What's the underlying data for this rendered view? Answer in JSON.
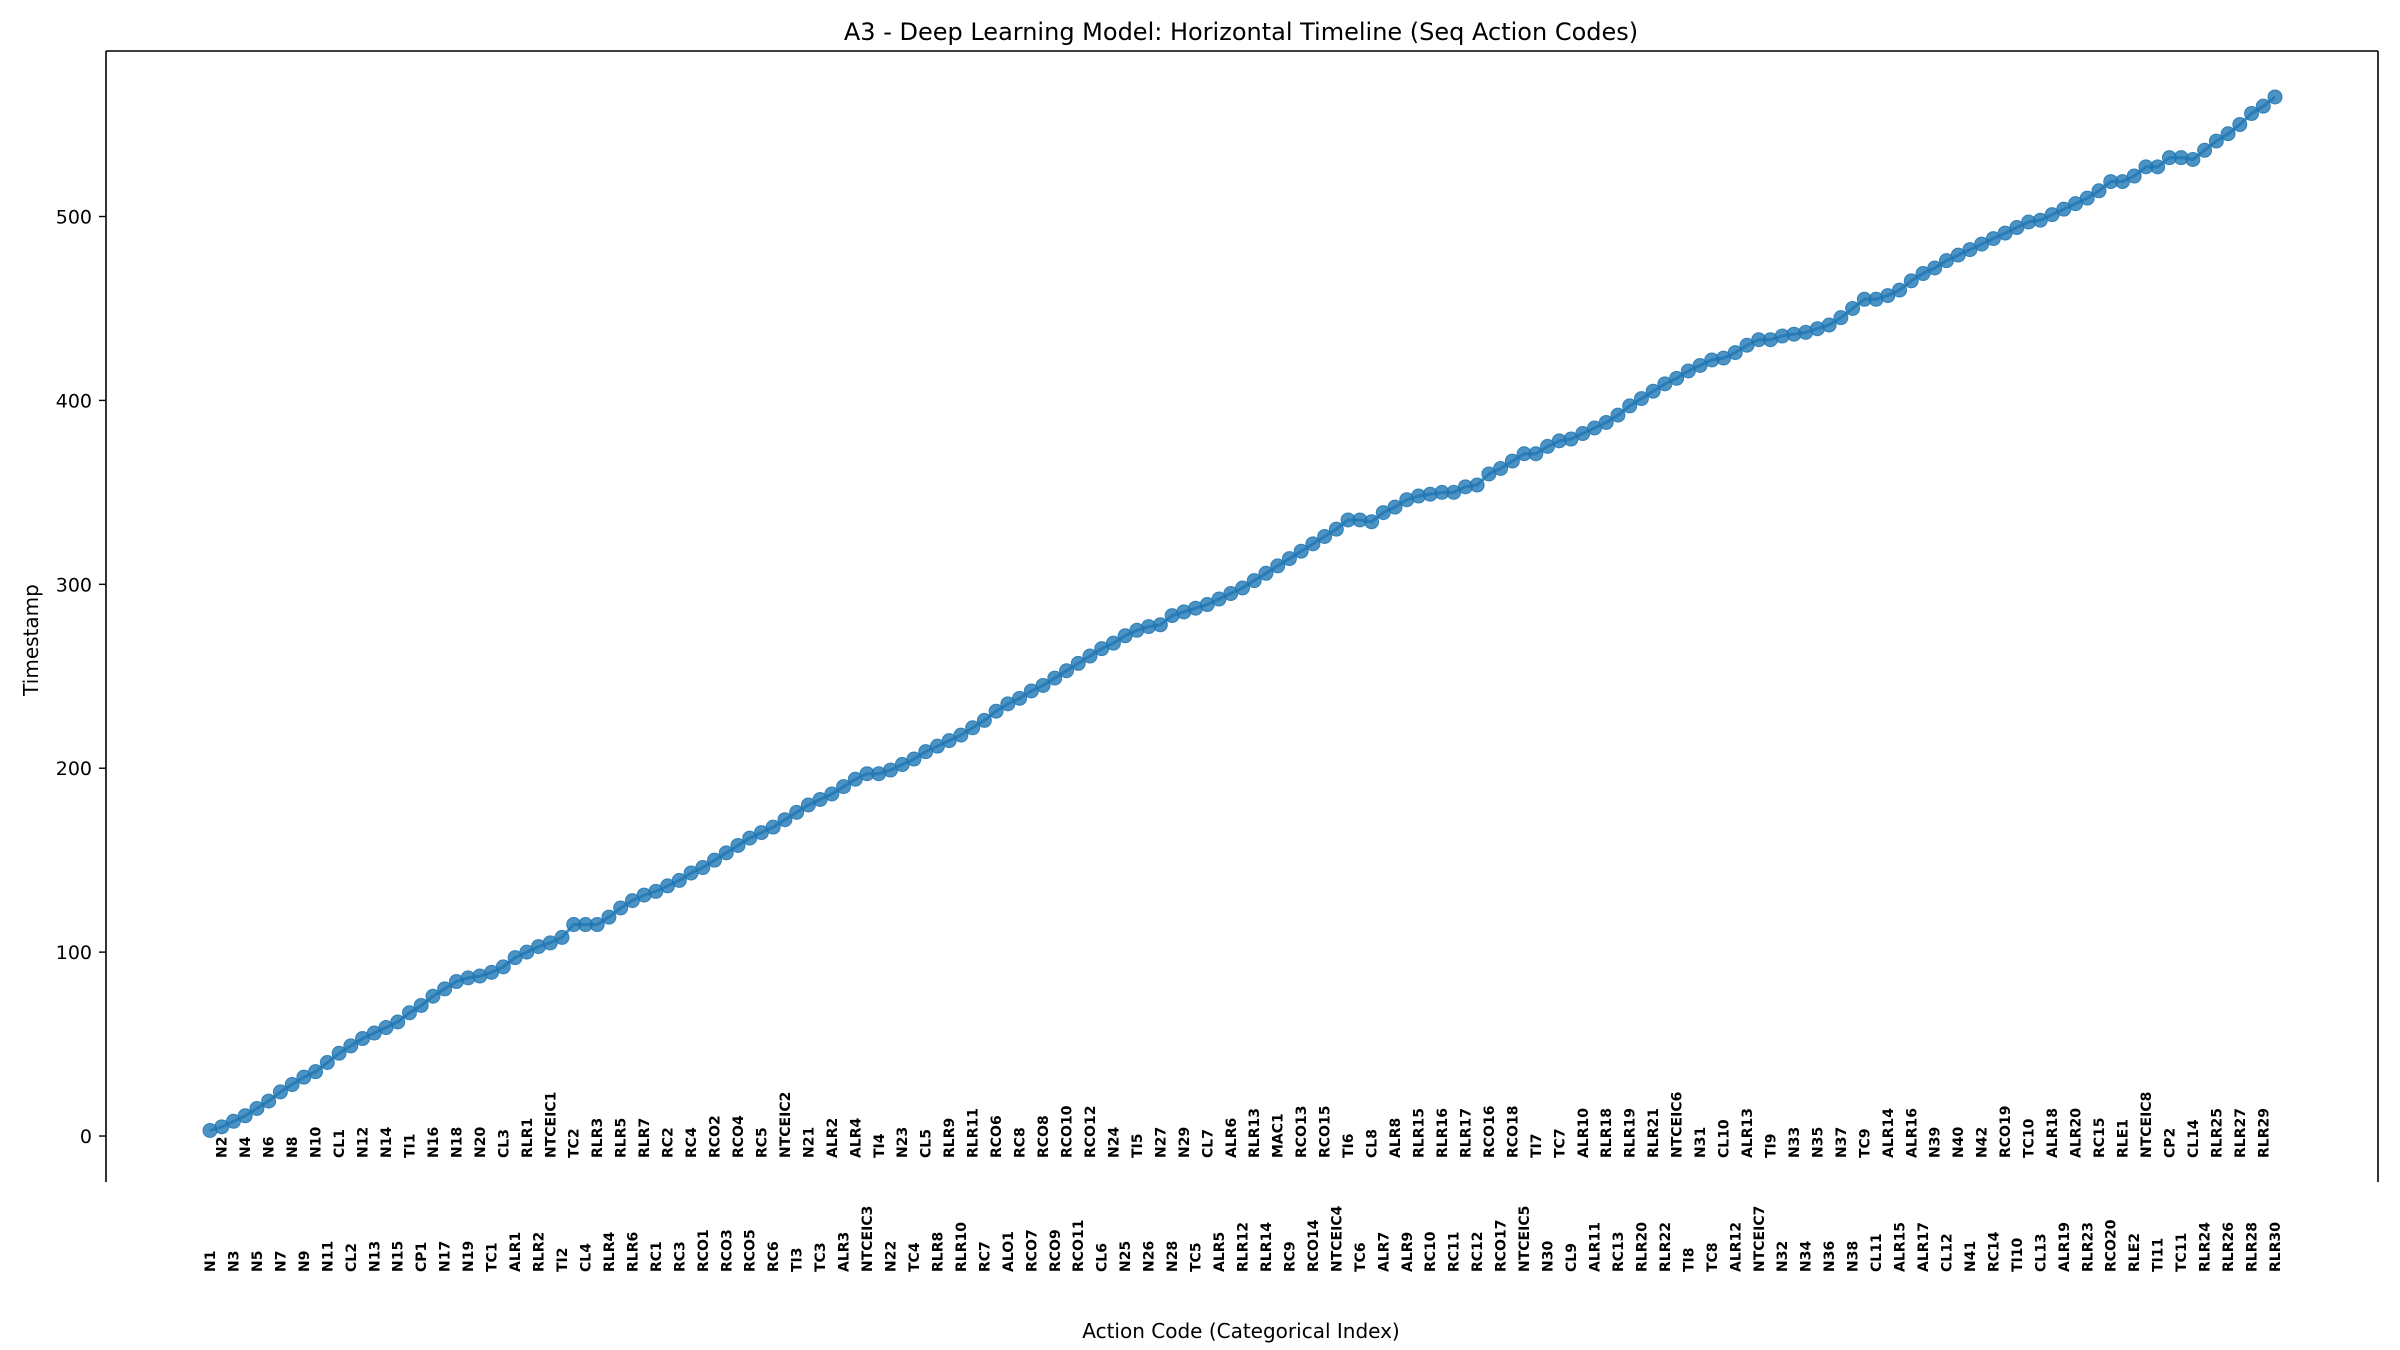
{
  "chart_data": {
    "type": "line",
    "title": "A3 - Deep Learning Model: Horizontal Timeline (Seq Action Codes)",
    "xlabel": "Action Code (Categorical Index)",
    "ylabel": "Timestamp",
    "ylim": [
      -25,
      590
    ],
    "yticks": [
      0,
      100,
      200,
      300,
      400,
      500
    ],
    "grid": false,
    "categories": [
      "N1",
      "N2",
      "N3",
      "N4",
      "N5",
      "N6",
      "N7",
      "N8",
      "N9",
      "N10",
      "N11",
      "CL1",
      "CL2",
      "N12",
      "N13",
      "N14",
      "N15",
      "TI1",
      "CP1",
      "N16",
      "N17",
      "N18",
      "N19",
      "N20",
      "TC1",
      "CL3",
      "ALR1",
      "RLR1",
      "RLR2",
      "NTCEIC1",
      "TI2",
      "TC2",
      "CL4",
      "RLR3",
      "RLR4",
      "RLR5",
      "RLR6",
      "RLR7",
      "RC1",
      "RC2",
      "RC3",
      "RC4",
      "RCO1",
      "RCO2",
      "RCO3",
      "RCO4",
      "RCO5",
      "RC5",
      "RC6",
      "NTCEIC2",
      "TI3",
      "N21",
      "TC3",
      "ALR2",
      "ALR3",
      "ALR4",
      "NTCEIC3",
      "TI4",
      "N22",
      "N23",
      "TC4",
      "CL5",
      "RLR8",
      "RLR9",
      "RLR10",
      "RLR11",
      "RC7",
      "RCO6",
      "ALO1",
      "RC8",
      "RCO7",
      "RCO8",
      "RCO9",
      "RCO10",
      "RCO11",
      "RCO12",
      "CL6",
      "N24",
      "N25",
      "TI5",
      "N26",
      "N27",
      "N28",
      "N29",
      "TC5",
      "CL7",
      "ALR5",
      "ALR6",
      "RLR12",
      "RLR13",
      "RLR14",
      "MAC1",
      "RC9",
      "RCO13",
      "RCO14",
      "RCO15",
      "NTCEIC4",
      "TI6",
      "TC6",
      "CL8",
      "ALR7",
      "ALR8",
      "ALR9",
      "RLR15",
      "RC10",
      "RLR16",
      "RC11",
      "RLR17",
      "RC12",
      "RCO16",
      "RCO17",
      "RCO18",
      "NTCEIC5",
      "TI7",
      "N30",
      "TC7",
      "CL9",
      "ALR10",
      "ALR11",
      "RLR18",
      "RC13",
      "RLR19",
      "RLR20",
      "RLR21",
      "RLR22",
      "NTCEIC6",
      "TI8",
      "N31",
      "TC8",
      "CL10",
      "ALR12",
      "ALR13",
      "NTCEIC7",
      "TI9",
      "N32",
      "N33",
      "N34",
      "N35",
      "N36",
      "N37",
      "N38",
      "TC9",
      "CL11",
      "ALR14",
      "ALR15",
      "ALR16",
      "ALR17",
      "N39",
      "CL12",
      "N40",
      "N41",
      "N42",
      "RC14",
      "RCO19",
      "TI10",
      "TC10",
      "CL13",
      "ALR18",
      "ALR19",
      "ALR20",
      "RLR23",
      "RC15",
      "RCO20",
      "RLE1",
      "RLE2",
      "NTCEIC8",
      "TI11",
      "CP2",
      "TC11",
      "CL14",
      "RLR24",
      "RLR25",
      "RLR26",
      "RLR27",
      "RLR28",
      "RLR29",
      "RLR30"
    ],
    "series": [
      {
        "values": [
          3,
          5,
          8,
          11,
          15,
          19,
          24,
          28,
          32,
          35,
          40,
          45,
          49,
          53,
          56,
          59,
          62,
          67,
          71,
          76,
          80,
          84,
          86,
          87,
          89,
          92,
          97,
          100,
          103,
          105,
          108,
          115,
          115,
          115,
          119,
          124,
          128,
          131,
          133,
          136,
          139,
          143,
          146,
          150,
          154,
          158,
          162,
          165,
          168,
          172,
          176,
          180,
          183,
          186,
          190,
          194,
          197,
          197,
          199,
          202,
          205,
          209,
          212,
          215,
          218,
          222,
          226,
          231,
          235,
          238,
          242,
          245,
          249,
          253,
          257,
          261,
          265,
          268,
          272,
          275,
          277,
          278,
          283,
          285,
          287,
          289,
          292,
          295,
          298,
          302,
          306,
          310,
          314,
          318,
          322,
          326,
          330,
          335,
          335,
          334,
          339,
          342,
          346,
          348,
          349,
          350,
          350,
          353,
          354,
          360,
          363,
          367,
          371,
          371,
          375,
          378,
          379,
          382,
          385,
          388,
          392,
          397,
          401,
          405,
          409,
          412,
          416,
          419,
          422,
          423,
          426,
          430,
          433,
          433,
          435,
          436,
          437,
          439,
          441,
          445,
          450,
          455,
          455,
          457,
          460,
          465,
          469,
          472,
          476,
          479,
          482,
          485,
          488,
          491,
          494,
          497,
          498,
          501,
          504,
          507,
          510,
          514,
          519,
          519,
          522,
          527,
          527,
          532,
          532,
          531,
          536,
          541,
          545,
          550,
          556,
          560,
          565
        ]
      }
    ]
  }
}
